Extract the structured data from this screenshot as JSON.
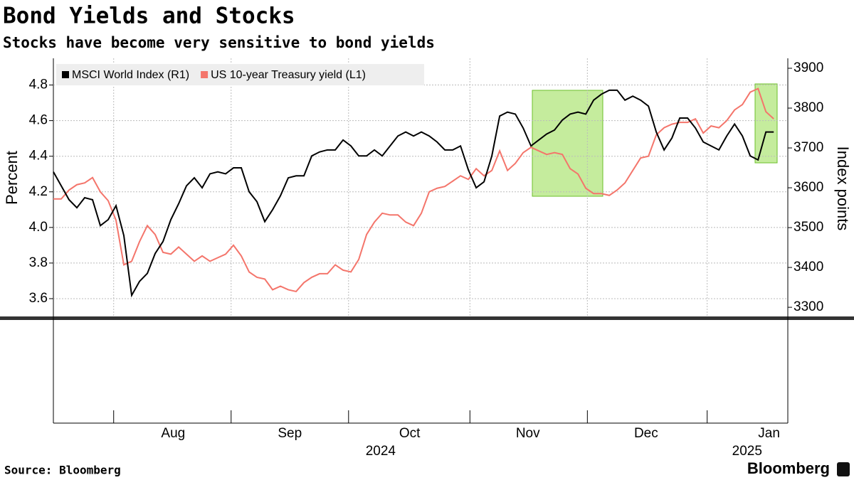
{
  "chart_data": {
    "type": "line",
    "title": "Bond Yields and Stocks",
    "subtitle": "Stocks have become very sensitive to bond yields",
    "y_label": "Percent",
    "y2_label": "Index points",
    "source": "Source: Bloomberg",
    "brand": "Bloomberg",
    "legend": "upper left",
    "grid": true,
    "xlim": [
      0,
      93.8
    ],
    "xticks": [
      7.7,
      22.7,
      37.7,
      53.2,
      68.2,
      83.5
    ],
    "month_labels": [
      {
        "value": 15.3,
        "label": "Aug"
      },
      {
        "value": 30.2,
        "label": "Sep"
      },
      {
        "value": 45.5,
        "label": "Oct"
      },
      {
        "value": 60.6,
        "label": "Nov"
      },
      {
        "value": 75.7,
        "label": "Dec"
      },
      {
        "value": 91.4,
        "label": "Jan"
      }
    ],
    "year_labels": [
      {
        "value": 41.8,
        "label": "2024"
      },
      {
        "value": 88.6,
        "label": "2025"
      }
    ],
    "ylim": [
      3.5,
      4.95
    ],
    "yticks": [
      3.6,
      3.8,
      {
        "value": 4,
        "label": "4.0"
      },
      4.2,
      4.4,
      4.6,
      4.8
    ],
    "y2lim": [
      3277,
      3925
    ],
    "y2ticks": [
      3300,
      3400,
      3500,
      3600,
      3700,
      3800,
      3900
    ],
    "series": [
      {
        "name": "MSCI World Index (R1)",
        "color": "#000000",
        "axis": "y2",
        "values": [
          3640,
          3605,
          3570,
          3550,
          3575,
          3570,
          3505,
          3520,
          3555,
          3480,
          3330,
          3365,
          3385,
          3435,
          3465,
          3520,
          3560,
          3605,
          3625,
          3600,
          3635,
          3640,
          3635,
          3650,
          3650,
          3590,
          3565,
          3515,
          3545,
          3580,
          3625,
          3630,
          3630,
          3680,
          3690,
          3695,
          3695,
          3720,
          3705,
          3680,
          3680,
          3695,
          3680,
          3705,
          3730,
          3740,
          3730,
          3740,
          3730,
          3715,
          3695,
          3695,
          3705,
          3645,
          3600,
          3615,
          3680,
          3780,
          3790,
          3785,
          3750,
          3705,
          3720,
          3735,
          3745,
          3770,
          3785,
          3790,
          3785,
          3820,
          3835,
          3845,
          3845,
          3820,
          3830,
          3820,
          3805,
          3740,
          3695,
          3725,
          3775,
          3775,
          3750,
          3715,
          3705,
          3695,
          3730,
          3760,
          3730,
          3680,
          3670,
          3740,
          3740
        ]
      },
      {
        "name": "US 10-year Treasury yield (L1)",
        "color": "#f4756b",
        "axis": "y",
        "values": [
          4.16,
          4.16,
          4.21,
          4.24,
          4.25,
          4.28,
          4.2,
          4.15,
          4.04,
          3.79,
          3.81,
          3.92,
          4.01,
          3.96,
          3.86,
          3.85,
          3.89,
          3.85,
          3.81,
          3.84,
          3.81,
          3.83,
          3.85,
          3.9,
          3.84,
          3.75,
          3.72,
          3.71,
          3.65,
          3.67,
          3.65,
          3.64,
          3.69,
          3.72,
          3.74,
          3.74,
          3.79,
          3.76,
          3.75,
          3.82,
          3.96,
          4.03,
          4.08,
          4.07,
          4.07,
          4.03,
          4.01,
          4.08,
          4.2,
          4.22,
          4.23,
          4.26,
          4.29,
          4.27,
          4.33,
          4.29,
          4.32,
          4.43,
          4.32,
          4.36,
          4.42,
          4.45,
          4.43,
          4.41,
          4.42,
          4.41,
          4.33,
          4.3,
          4.22,
          4.19,
          4.19,
          4.18,
          4.21,
          4.25,
          4.32,
          4.39,
          4.4,
          4.52,
          4.56,
          4.58,
          4.59,
          4.59,
          4.61,
          4.53,
          4.57,
          4.56,
          4.6,
          4.66,
          4.69,
          4.76,
          4.78,
          4.65,
          4.61
        ]
      }
    ]
  }
}
